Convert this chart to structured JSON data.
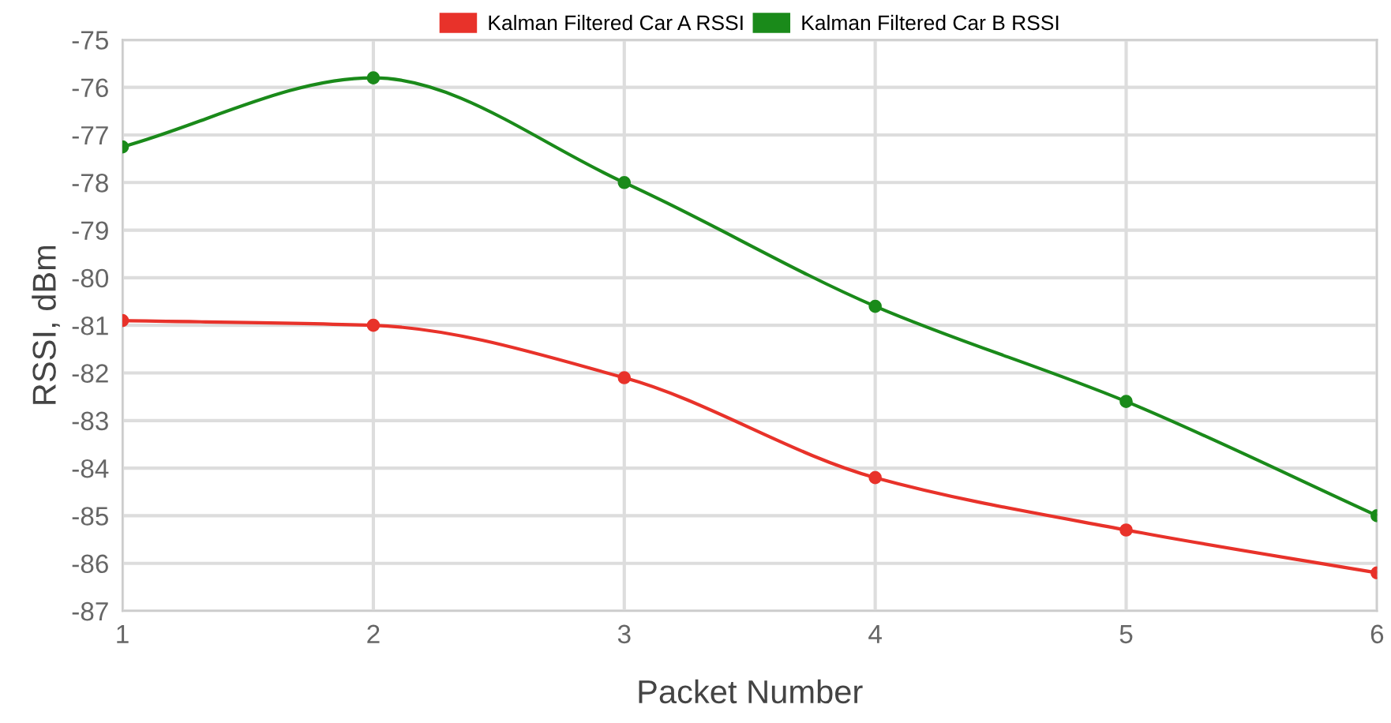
{
  "chart_data": {
    "type": "line",
    "xlabel": "Packet Number",
    "ylabel": "RSSI, dBm",
    "x": [
      1,
      2,
      3,
      4,
      5,
      6
    ],
    "series": [
      {
        "name": "Kalman Filtered Car A RSSI",
        "color": "#e8322a",
        "values": [
          -80.9,
          -81.0,
          -82.1,
          -84.2,
          -85.3,
          -86.2
        ]
      },
      {
        "name": "Kalman Filtered Car B RSSI",
        "color": "#1a8a1a",
        "values": [
          -77.25,
          -75.8,
          -78.0,
          -80.6,
          -82.6,
          -85.0
        ]
      }
    ],
    "xlim": [
      1,
      6
    ],
    "xticks": [
      1,
      2,
      3,
      4,
      5,
      6
    ],
    "ylim": [
      -87,
      -75
    ],
    "yticks": [
      -87,
      -86,
      -85,
      -84,
      -83,
      -82,
      -81,
      -80,
      -79,
      -78,
      -77,
      -76,
      -75
    ],
    "grid": true,
    "legend": "top",
    "marker": "circle",
    "line_style": "solid"
  }
}
